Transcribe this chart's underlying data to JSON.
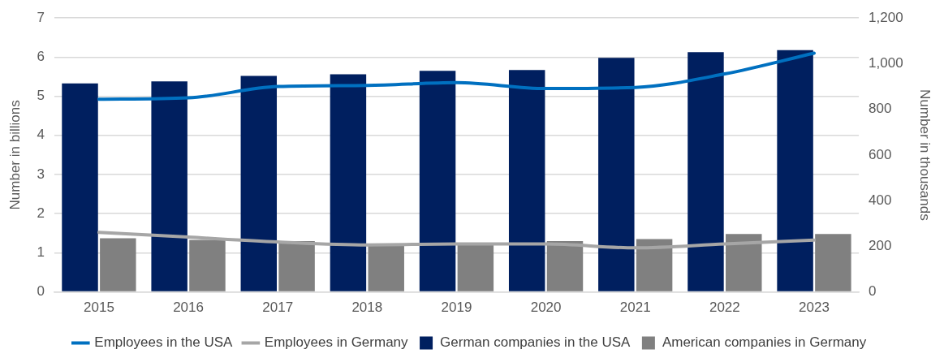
{
  "chart_data": {
    "type": "bar",
    "categories": [
      "2015",
      "2016",
      "2017",
      "2018",
      "2019",
      "2020",
      "2021",
      "2022",
      "2023"
    ],
    "ylabel": "Number in billions",
    "y2label": "Number in thousands",
    "ylim": [
      0,
      7
    ],
    "yticks": [
      0,
      1,
      2,
      3,
      4,
      5,
      6,
      7
    ],
    "y2lim": [
      0,
      1200
    ],
    "y2ticks": [
      {
        "value": 0,
        "label": "0"
      },
      {
        "value": 200,
        "label": "200"
      },
      {
        "value": 400,
        "label": "400"
      },
      {
        "value": 600,
        "label": "600"
      },
      {
        "value": 800,
        "label": "800"
      },
      {
        "value": 1000,
        "label": "1,000"
      },
      {
        "value": 1200,
        "label": "1,200"
      }
    ],
    "grid": "y",
    "legend": "bottom",
    "series": [
      {
        "name": "German companies in the USA",
        "color": "#001f5f",
        "values": [
          5.33,
          5.38,
          5.52,
          5.56,
          5.65,
          5.67,
          5.98,
          6.13,
          6.18
        ]
      },
      {
        "name": "American companies in Germany",
        "color": "#808080",
        "values": [
          1.37,
          1.33,
          1.3,
          1.2,
          1.2,
          1.3,
          1.35,
          1.48,
          1.48
        ]
      },
      {
        "name": "Employees in the USA",
        "type": "line",
        "axis": "y2",
        "color": "#0070c0",
        "values": [
          844,
          850,
          900,
          905,
          917,
          891,
          896,
          955,
          1046
        ]
      },
      {
        "name": "Employees in Germany",
        "type": "line",
        "axis": "y2",
        "color": "#a6a6a6",
        "values": [
          261,
          240,
          219,
          206,
          210,
          210,
          193,
          210,
          227
        ]
      }
    ]
  }
}
